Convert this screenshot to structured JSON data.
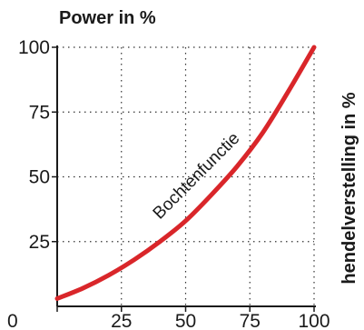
{
  "chart_data": {
    "type": "line",
    "title": "Power in %",
    "xlabel": "",
    "ylabel": "hendelverstelling in %",
    "xlim": [
      0,
      100
    ],
    "ylim": [
      0,
      100
    ],
    "x_ticks": [
      "0",
      "25",
      "50",
      "75",
      "100"
    ],
    "y_ticks": [
      "25",
      "50",
      "75",
      "100"
    ],
    "grid": true,
    "series": [
      {
        "name": "Bochtenfunctie",
        "color": "#d9262a",
        "x": [
          0,
          10,
          20,
          30,
          40,
          50,
          60,
          70,
          80,
          90,
          100
        ],
        "y": [
          3,
          7,
          12,
          18,
          25,
          33,
          43,
          54,
          67,
          83,
          100
        ]
      }
    ]
  }
}
